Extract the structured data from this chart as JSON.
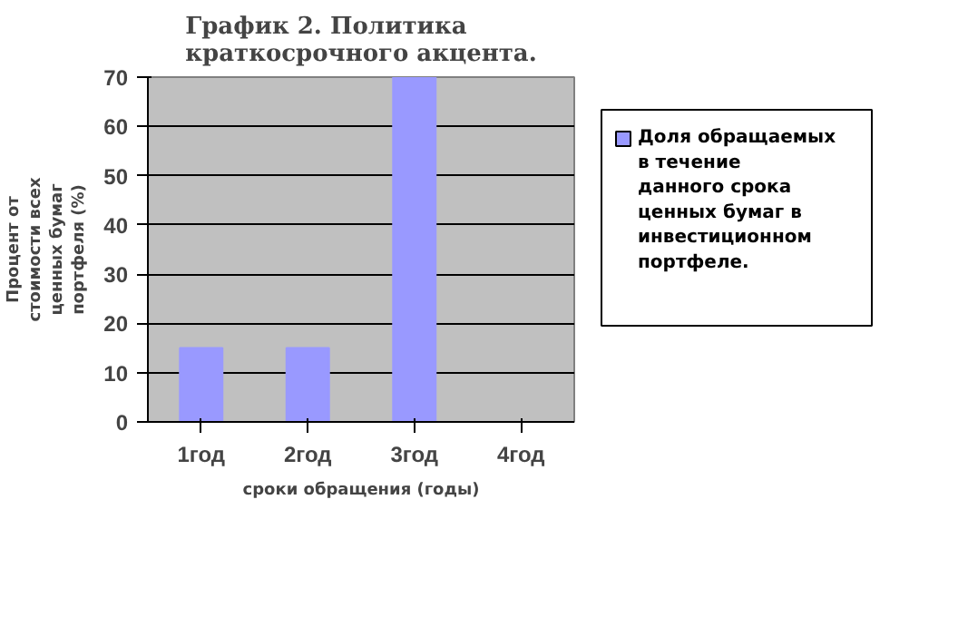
{
  "chart_data": {
    "type": "bar",
    "title": "График 2. Политика краткосрочного акцента.",
    "xlabel": "сроки обращения (годы)",
    "ylabel": "Процент от стоимости всех ценных бумаг портфеля (%)",
    "categories": [
      "1год",
      "2год",
      "3год",
      "4год"
    ],
    "series": [
      {
        "name": "Доля обращаемых в течение данного срока ценных бумаг в инвестиционном портфеле.",
        "color": "#9999ff",
        "values": [
          15,
          15,
          70,
          0
        ]
      }
    ],
    "ylim": [
      0,
      70
    ],
    "yticks": [
      0,
      10,
      20,
      30,
      40,
      50,
      60,
      70
    ],
    "grid": "y",
    "legend": "right"
  }
}
